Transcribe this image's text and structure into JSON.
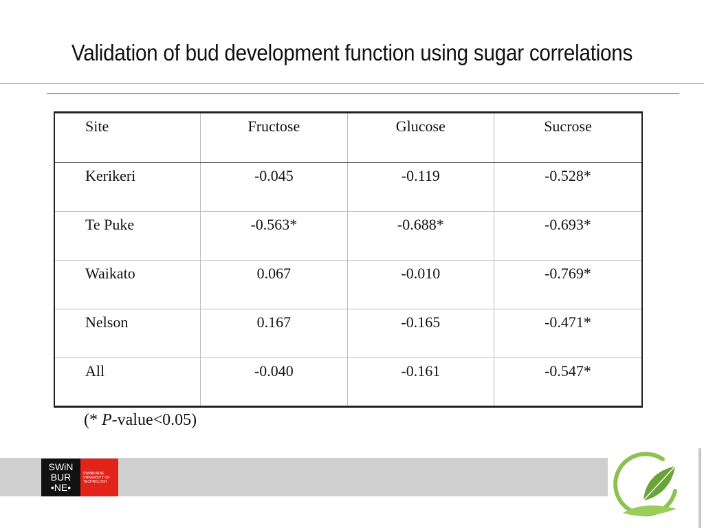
{
  "slide": {
    "title": "Validation of bud development function using sugar correlations"
  },
  "table": {
    "headers": [
      "Site",
      "Fructose",
      "Glucose",
      "Sucrose"
    ],
    "rows": [
      [
        "Kerikeri",
        "-0.045",
        "-0.119",
        "-0.528*"
      ],
      [
        "Te Puke",
        "-0.563*",
        "-0.688*",
        "-0.693*"
      ],
      [
        "Waikato",
        "0.067",
        "-0.010",
        "-0.769*"
      ],
      [
        "Nelson",
        "0.167",
        "-0.165",
        "-0.471*"
      ],
      [
        "All",
        "-0.040",
        "-0.161",
        "-0.547*"
      ]
    ]
  },
  "footnote": {
    "prefix": "(* ",
    "italic": "P",
    "suffix": "-value<0.05)"
  },
  "footer": {
    "logo_lines": [
      "SWiN",
      "BUR",
      "•NE•"
    ],
    "logo_sub": [
      "SWINBURNE",
      "UNIVERSITY OF",
      "TECHNOLOGY"
    ],
    "leaf_icon": "leaf-logo-icon",
    "brand_red": "#e2231a",
    "leaf_green": "#7ab648"
  }
}
